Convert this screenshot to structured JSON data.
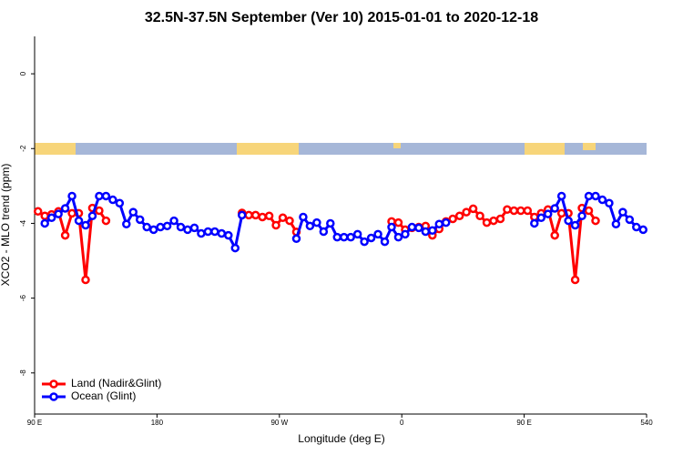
{
  "chart_data": {
    "type": "line",
    "title": "32.5N-37.5N September (Ver 10)   2015-01-01 to 2020-12-18",
    "x_label": "Longitude (deg E)",
    "y_label": "XCO2 - MLO trend (ppm)",
    "xlim": [
      90,
      540
    ],
    "xticks": [
      {
        "value": 90,
        "label": "90 E"
      },
      180,
      {
        "value": 270,
        "label": "90 W"
      },
      {
        "value": 360,
        "label": "0"
      },
      {
        "value": 450,
        "label": "90 E"
      },
      540
    ],
    "ylim": [
      -9.1,
      1.0
    ],
    "yticks": [
      0,
      -2,
      -4,
      -6,
      -8
    ],
    "legend": "bottom-left",
    "x": [
      92.5,
      97.5,
      102.5,
      107.5,
      112.5,
      117.5,
      122.5,
      127.5,
      132.5,
      137.5,
      142.5,
      147.5,
      152.5,
      157.5,
      162.5,
      167.5,
      172.5,
      177.5,
      182.5,
      187.5,
      192.5,
      197.5,
      202.5,
      207.5,
      212.5,
      217.5,
      222.5,
      227.5,
      232.5,
      237.5,
      242.5,
      247.5,
      252.5,
      257.5,
      262.5,
      267.5,
      272.5,
      277.5,
      282.5,
      287.5,
      292.5,
      297.5,
      302.5,
      307.5,
      312.5,
      317.5,
      322.5,
      327.5,
      332.5,
      337.5,
      342.5,
      347.5,
      352.5,
      357.5,
      362.5,
      367.5,
      372.5,
      377.5,
      382.5,
      387.5,
      392.5,
      397.5,
      402.5,
      407.5,
      412.5,
      417.5,
      422.5,
      427.5,
      432.5,
      437.5,
      442.5,
      447.5,
      452.5,
      457.5,
      462.5,
      467.5,
      472.5,
      477.5,
      482.5,
      487.5,
      492.5,
      497.5,
      502.5,
      507.5,
      512.5,
      517.5,
      522.5,
      527.5,
      532.5,
      537.5
    ],
    "series": [
      {
        "name": "Land (Nadir&Glint)",
        "color": "#ff0000",
        "values": [
          -3.68,
          -3.8,
          -3.76,
          -3.68,
          -4.32,
          -3.73,
          -3.73,
          -5.51,
          -3.59,
          -3.66,
          -3.93,
          null,
          null,
          null,
          null,
          null,
          null,
          null,
          null,
          null,
          null,
          null,
          null,
          null,
          null,
          null,
          null,
          null,
          null,
          null,
          -3.72,
          -3.78,
          -3.78,
          -3.83,
          -3.8,
          -4.05,
          -3.85,
          -3.93,
          -4.23,
          null,
          null,
          null,
          null,
          null,
          null,
          null,
          null,
          null,
          null,
          null,
          null,
          null,
          -3.95,
          -3.98,
          -4.17,
          -4.12,
          -4.1,
          -4.07,
          -4.32,
          -4.15,
          -3.95,
          -3.88,
          -3.8,
          -3.7,
          -3.61,
          -3.8,
          -3.98,
          -3.93,
          -3.88,
          -3.63,
          -3.66,
          -3.66,
          -3.66,
          -3.83,
          -3.73,
          -3.63,
          -4.32,
          -3.73,
          -3.73,
          -5.51,
          -3.59,
          -3.66,
          -3.93,
          null,
          null,
          null,
          null,
          null,
          null,
          null
        ]
      },
      {
        "name": "Ocean (Glint)",
        "color": "#0000ff",
        "values": [
          null,
          -4.0,
          -3.85,
          -3.75,
          -3.6,
          -3.27,
          -3.93,
          -4.05,
          -3.8,
          -3.27,
          -3.27,
          -3.37,
          -3.46,
          -4.02,
          -3.7,
          -3.9,
          -4.1,
          -4.17,
          -4.1,
          -4.07,
          -3.93,
          -4.1,
          -4.17,
          -4.12,
          -4.27,
          -4.22,
          -4.22,
          -4.27,
          -4.32,
          -4.66,
          -3.78,
          null,
          null,
          null,
          null,
          null,
          null,
          null,
          -4.41,
          -3.83,
          -4.07,
          -3.98,
          -4.22,
          -4.0,
          -4.37,
          -4.37,
          -4.37,
          -4.29,
          -4.49,
          -4.39,
          -4.29,
          -4.49,
          -4.1,
          -4.37,
          -4.29,
          -4.1,
          -4.12,
          -4.22,
          -4.19,
          -4.02,
          -3.98,
          null,
          null,
          null,
          null,
          null,
          null,
          null,
          null,
          null,
          null,
          null,
          null,
          -4.0,
          -3.85,
          -3.75,
          -3.6,
          -3.27,
          -3.93,
          -4.05,
          -3.8,
          -3.27,
          -3.27,
          -3.37,
          -3.46,
          -4.02,
          -3.7,
          -3.9,
          -4.1,
          -4.17
        ]
      }
    ]
  }
}
